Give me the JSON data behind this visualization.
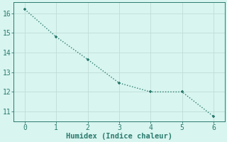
{
  "x": [
    0,
    1,
    2,
    3,
    4,
    5,
    6
  ],
  "y": [
    16.2,
    14.8,
    13.65,
    12.45,
    12.0,
    12.0,
    10.75
  ],
  "line_color": "#2a7a6d",
  "marker_color": "#2a7a6d",
  "bg_color": "#d8f5f0",
  "grid_color": "#c0ddd8",
  "xlabel": "Humidex (Indice chaleur)",
  "xlim": [
    -0.35,
    6.35
  ],
  "ylim": [
    10.5,
    16.55
  ],
  "yticks": [
    11,
    12,
    13,
    14,
    15,
    16
  ],
  "xticks": [
    0,
    1,
    2,
    3,
    4,
    5,
    6
  ],
  "font_color": "#2a7a6d",
  "xlabel_fontsize": 7.5,
  "tick_fontsize": 7,
  "line_width": 1.0,
  "marker_size": 3.5
}
